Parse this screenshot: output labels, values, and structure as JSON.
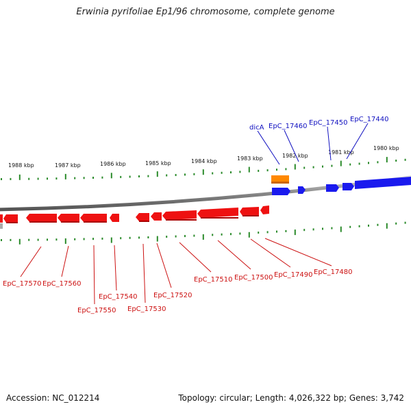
{
  "title": "Erwinia pyrifoliae Ep1/96 chromosome, complete genome",
  "footer": {
    "accession": "Accession: NC_012214",
    "meta": "Topology: circular; Length: 4,026,322 bp; Genes: 3,742"
  },
  "colors": {
    "forward_gene": "#1a1aee",
    "reverse_gene": "#ee1111",
    "rna_gene": "#ff8800",
    "tick": "#2a8a2a",
    "backbone": "#888888",
    "label_blue": "#1010c0",
    "label_red": "#cc1010"
  },
  "scale_labels": [
    "1988 kbp",
    "1987 kbp",
    "1986 kbp",
    "1985 kbp",
    "1984 kbp",
    "1983 kbp",
    "1982 kbp",
    "1981 kbp",
    "1980 kbp"
  ],
  "forward_labels": [
    "dicA",
    "EpC_17460",
    "EpC_17450",
    "EpC_17440"
  ],
  "reverse_labels": [
    "EpC_17570",
    "EpC_17560",
    "EpC_17550",
    "EpC_17540",
    "EpC_17530",
    "EpC_17520",
    "EpC_17510",
    "EpC_17500",
    "EpC_17490",
    "EpC_17480"
  ]
}
